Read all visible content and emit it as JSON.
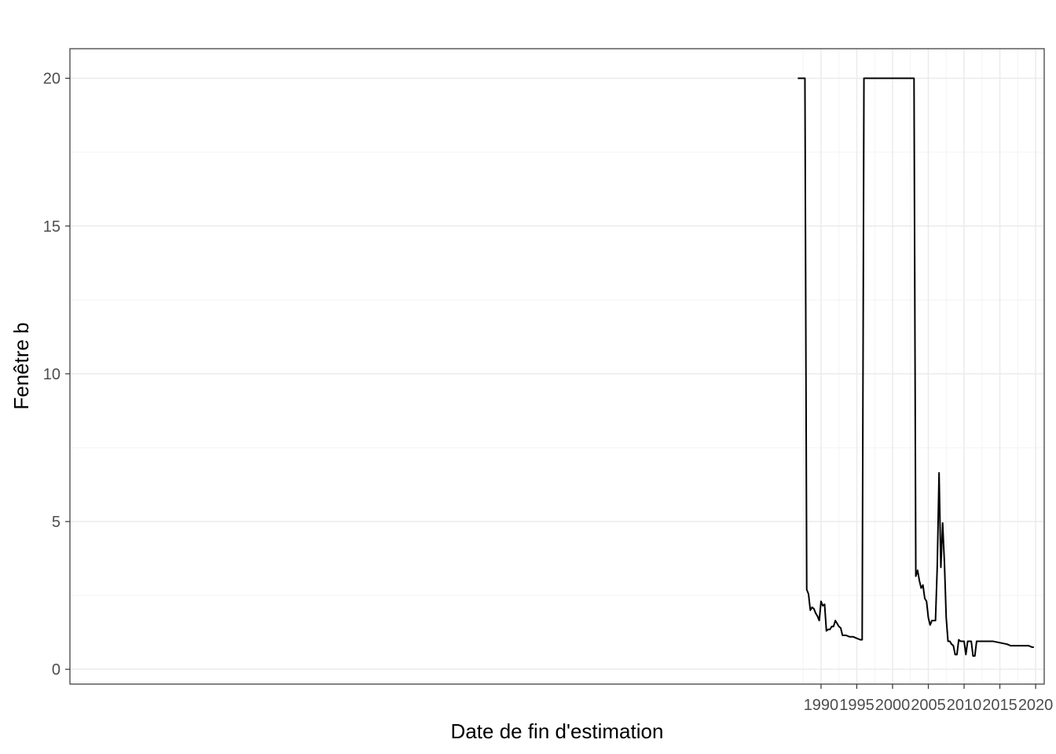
{
  "chart_data": {
    "type": "line",
    "title": "",
    "xlabel": "Date de fin d'estimation",
    "ylabel": "Fenêtre b",
    "xlim": [
      1885.0,
      2021.2
    ],
    "ylim": [
      -0.5,
      21.0
    ],
    "x_ticks": [
      "1990",
      "1995",
      "2000",
      "2005",
      "2010",
      "2015",
      "2020"
    ],
    "y_ticks": [
      "0",
      "5",
      "10",
      "15",
      "20"
    ],
    "grid": true,
    "legend": "none",
    "colors": {
      "line": "#000000",
      "grid_major": "#ebebeb",
      "grid_minor": "#f3f3f3",
      "panel_border": "#333333",
      "tick_text": "#4d4d4d"
    },
    "series": [
      {
        "x": [
          1986.75,
          1987.0,
          1987.25,
          1987.5,
          1987.75,
          1988.0,
          1988.25,
          1988.5,
          1988.75,
          1989.0,
          1989.25,
          1989.5,
          1989.75,
          1990.0,
          1990.25,
          1990.5,
          1990.75,
          1991.0,
          1991.25,
          1991.5,
          1991.75,
          1992.0,
          1992.25,
          1992.5,
          1992.75,
          1993.0,
          1993.5,
          1994.0,
          1994.5,
          1995.0,
          1995.5,
          1995.75,
          1996.0,
          1996.5,
          1997.0,
          1998.0,
          1999.0,
          2000.0,
          2001.0,
          2002.0,
          2002.75,
          2003.0,
          2003.25,
          2003.5,
          2003.75,
          2004.0,
          2004.25,
          2004.5,
          2004.75,
          2005.0,
          2005.25,
          2005.5,
          2005.75,
          2006.0,
          2006.25,
          2006.5,
          2006.75,
          2007.0,
          2007.25,
          2007.5,
          2007.75,
          2008.0,
          2008.25,
          2008.5,
          2008.75,
          2009.0,
          2009.25,
          2009.5,
          2009.75,
          2010.0,
          2010.25,
          2010.5,
          2010.75,
          2011.0,
          2011.25,
          2011.5,
          2011.75,
          2012.0,
          2013.0,
          2014.0,
          2015.0,
          2016.0,
          2016.5,
          2017.0,
          2017.5,
          2018.0,
          2018.5,
          2019.0,
          2019.5,
          2019.75
        ],
        "y": [
          20.0,
          20.0,
          20.0,
          20.0,
          20.0,
          2.7,
          2.55,
          2.0,
          2.1,
          2.05,
          1.9,
          1.8,
          1.65,
          2.3,
          2.15,
          2.2,
          1.3,
          1.35,
          1.35,
          1.45,
          1.45,
          1.65,
          1.55,
          1.45,
          1.4,
          1.15,
          1.15,
          1.1,
          1.1,
          1.05,
          1.0,
          1.0,
          20.0,
          20.0,
          20.0,
          20.0,
          20.0,
          20.0,
          20.0,
          20.0,
          20.0,
          20.0,
          3.15,
          3.35,
          3.0,
          2.75,
          2.85,
          2.4,
          2.3,
          1.75,
          1.5,
          1.65,
          1.65,
          1.65,
          3.5,
          6.65,
          3.45,
          4.95,
          3.6,
          1.75,
          0.95,
          0.95,
          0.85,
          0.8,
          0.5,
          0.5,
          1.0,
          0.95,
          0.95,
          0.95,
          0.5,
          0.95,
          0.95,
          0.95,
          0.45,
          0.45,
          0.95,
          0.95,
          0.95,
          0.95,
          0.9,
          0.85,
          0.8,
          0.8,
          0.8,
          0.8,
          0.8,
          0.8,
          0.75,
          0.75
        ]
      }
    ]
  }
}
